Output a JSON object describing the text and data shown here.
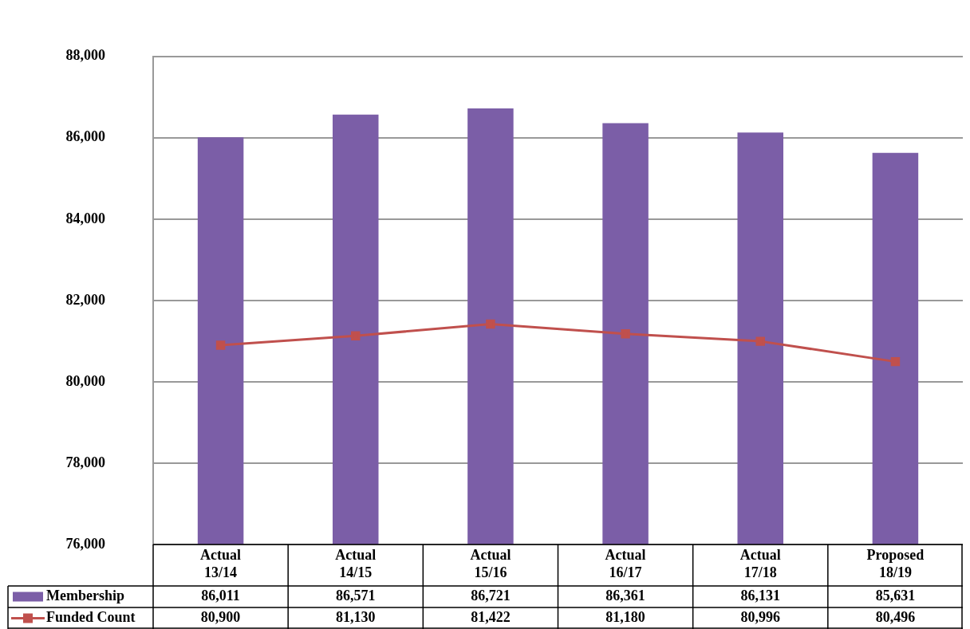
{
  "chart_data": {
    "type": "bar",
    "categories": [
      "Actual 13/14",
      "Actual 14/15",
      "Actual 15/16",
      "Actual 16/17",
      "Actual 17/18",
      "Proposed 18/19"
    ],
    "series": [
      {
        "name": "Membership",
        "color": "#7b5ea7",
        "values": [
          86011,
          86571,
          86721,
          86361,
          86131,
          85631
        ],
        "value_labels": [
          "86,011",
          "86,571",
          "86,721",
          "86,361",
          "86,131",
          "85,631"
        ]
      },
      {
        "name": "Funded Count",
        "type": "line",
        "color": "#c0504d",
        "values": [
          80900,
          81130,
          81422,
          81180,
          80996,
          80496
        ],
        "value_labels": [
          "80,900",
          "81,130",
          "81,422",
          "81,180",
          "80,996",
          "80,496"
        ]
      }
    ],
    "ylim": [
      76000,
      88000
    ],
    "yticks": [
      {
        "value": 76000,
        "label": "76,000"
      },
      {
        "value": 78000,
        "label": "78,000"
      },
      {
        "value": 80000,
        "label": "80,000"
      },
      {
        "value": 82000,
        "label": "82,000"
      },
      {
        "value": 84000,
        "label": "84,000"
      },
      {
        "value": 86000,
        "label": "86,000"
      },
      {
        "value": 88000,
        "label": "88,000"
      }
    ],
    "grid": "y",
    "legend": "bottom",
    "marker": "square",
    "line_style": "solid"
  }
}
